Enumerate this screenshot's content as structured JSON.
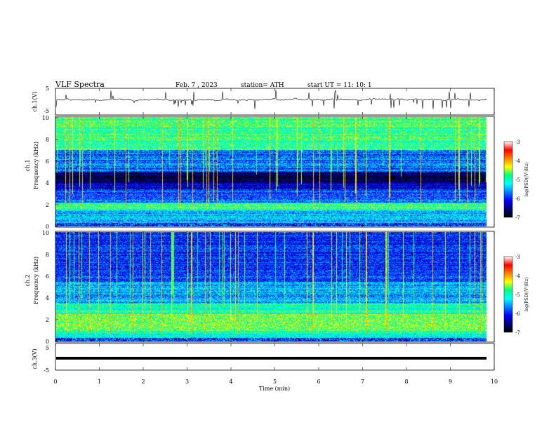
{
  "header": {
    "title": "VLF  Spectra",
    "date": "Feb. 7  , 2023",
    "station": "station= ATH",
    "start_ut": "start  UT  =    11: 10: 1"
  },
  "chart_data": [
    {
      "type": "line",
      "panel": "ch1-waveform",
      "ylabel": "ch.1(V)",
      "ylim": [
        -5,
        5
      ],
      "yticks": [
        "5",
        "-5"
      ],
      "xlim": [
        0,
        10
      ]
    },
    {
      "type": "heatmap",
      "panel": "ch1-spectrogram",
      "ylabel_top": "ch.1",
      "ylabel": "Frequency  (kHz)",
      "ylim": [
        0,
        10
      ],
      "yticks": [
        "10",
        "8",
        "6",
        "4",
        "2",
        "0"
      ],
      "xlim": [
        0,
        10
      ],
      "colorbar": {
        "label": "log(PSD)(V²/Hz)",
        "ticks": [
          "-3",
          "-4",
          "-5",
          "-6",
          "-7"
        ],
        "range": [
          -7,
          -3
        ]
      }
    },
    {
      "type": "heatmap",
      "panel": "ch2-spectrogram",
      "ylabel_top": "ch.2",
      "ylabel": "Frequency  (kHz)",
      "ylim": [
        0,
        10
      ],
      "yticks": [
        "10",
        "8",
        "6",
        "4",
        "2",
        "0"
      ],
      "xlim": [
        0,
        10
      ],
      "colorbar": {
        "label": "log(PSD)(V²/Hz)",
        "ticks": [
          "-3",
          "-4",
          "-5",
          "-6",
          "-7"
        ],
        "range": [
          -7,
          -3
        ]
      }
    },
    {
      "type": "line",
      "panel": "ch3-waveform",
      "ylabel": "ch.3(V)",
      "ylim": [
        -5,
        5
      ],
      "yticks": [
        "5",
        "-5"
      ],
      "xlim": [
        0,
        10
      ],
      "xlabel": "Time  (min)",
      "xticks": [
        "0",
        "1",
        "2",
        "3",
        "4",
        "5",
        "6",
        "7",
        "8",
        "9",
        "10"
      ]
    }
  ],
  "colors": {
    "colormap": [
      "#000000",
      "#00007a",
      "#0000ff",
      "#0080ff",
      "#00ffff",
      "#00ff80",
      "#ffff00",
      "#ff8000",
      "#ff0000",
      "#ffffff"
    ]
  }
}
